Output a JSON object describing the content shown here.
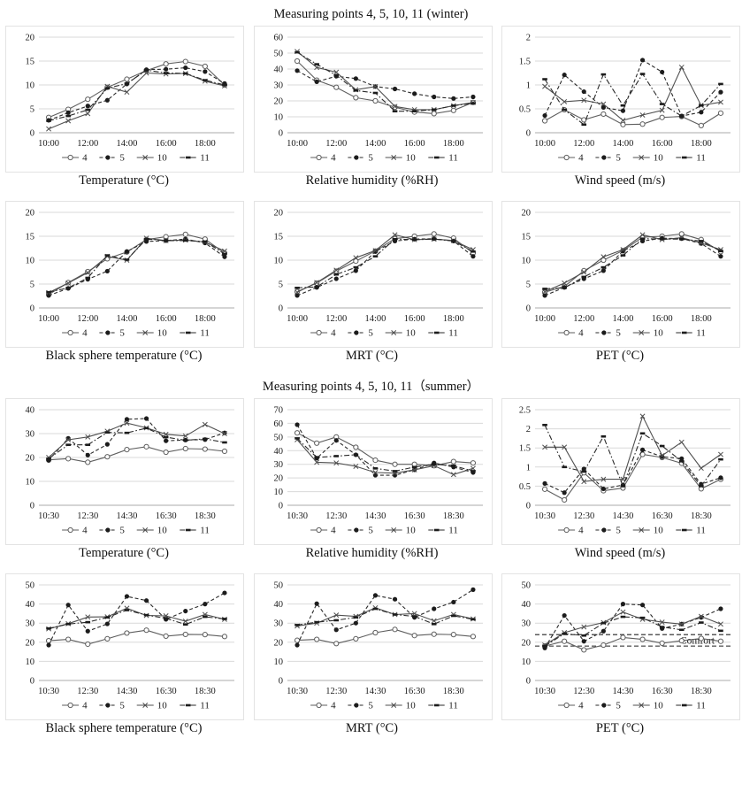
{
  "page": {
    "winter_title": "Measuring points 4, 5, 10, 11 (winter)",
    "summer_title": "Measuring points 4, 5, 10, 11（summer）"
  },
  "legend_labels": [
    "4",
    "5",
    "10",
    "11"
  ],
  "series_styles": {
    "4": {
      "line": "solid",
      "marker": "circle-open",
      "color": "#5e5e5e"
    },
    "5": {
      "line": "dashed",
      "marker": "circle-filled",
      "color": "#2a2a2a"
    },
    "10": {
      "line": "solid",
      "marker": "x",
      "color": "#4f4f4f"
    },
    "11": {
      "line": "dashdot",
      "marker": "dash-filled",
      "color": "#2a2a2a"
    }
  },
  "colors": {
    "gridline": "#d9d9d9",
    "axis": "#ababab",
    "text": "#1a1a1a"
  },
  "chart_data": [
    {
      "type": "line",
      "section": "winter",
      "title": "Temperature (°C)",
      "yticks": [
        0,
        5,
        10,
        15,
        20
      ],
      "ylim": [
        0,
        20
      ],
      "x_ticks": [
        "10:00",
        "12:00",
        "14:00",
        "16:00",
        "18:00"
      ],
      "series": [
        {
          "name": "4",
          "values": [
            3.2,
            4.9,
            7.0,
            9.5,
            11.2,
            13.0,
            14.4,
            14.9,
            13.9,
            10.0
          ]
        },
        {
          "name": "5",
          "values": [
            2.6,
            4.2,
            5.6,
            6.8,
            10.2,
            13.2,
            13.3,
            13.6,
            12.8,
            10.3
          ]
        },
        {
          "name": "10",
          "values": [
            0.8,
            2.5,
            4.0,
            9.7,
            8.5,
            12.5,
            12.3,
            12.4,
            10.8,
            9.8
          ]
        },
        {
          "name": "11",
          "values": [
            2.5,
            3.5,
            4.8,
            9.3,
            10.3,
            13.1,
            12.5,
            12.4,
            11.0,
            10.0
          ]
        }
      ]
    },
    {
      "type": "line",
      "section": "winter",
      "title": "Relative humidity (%RH)",
      "yticks": [
        0,
        10,
        20,
        30,
        40,
        50,
        60
      ],
      "ylim": [
        0,
        60
      ],
      "x_ticks": [
        "10:00",
        "12:00",
        "14:00",
        "16:00",
        "18:00"
      ],
      "series": [
        {
          "name": "4",
          "values": [
            45,
            33,
            28.5,
            22,
            20,
            16,
            13,
            12,
            14,
            19
          ]
        },
        {
          "name": "5",
          "values": [
            39,
            32,
            35.5,
            34,
            29,
            27.5,
            24.5,
            22.5,
            21.5,
            22.5
          ]
        },
        {
          "name": "10",
          "values": [
            51,
            41,
            38,
            27,
            29,
            16.5,
            14.5,
            14.5,
            17,
            19
          ]
        },
        {
          "name": "11",
          "values": [
            50.5,
            43,
            36,
            26.5,
            25,
            13.5,
            13.5,
            14.5,
            17,
            18.5
          ]
        }
      ]
    },
    {
      "type": "line",
      "section": "winter",
      "title": "Wind speed (m/s)",
      "yticks": [
        0,
        0.5,
        1,
        1.5,
        2
      ],
      "ylim": [
        0,
        2
      ],
      "x_ticks": [
        "10:00",
        "12:00",
        "14:00",
        "16:00",
        "18:00"
      ],
      "series": [
        {
          "name": "4",
          "values": [
            0.25,
            0.48,
            0.27,
            0.39,
            0.17,
            0.18,
            0.32,
            0.34,
            0.15,
            0.41
          ]
        },
        {
          "name": "5",
          "values": [
            0.36,
            1.21,
            0.86,
            0.53,
            0.46,
            1.52,
            1.27,
            0.35,
            0.43,
            0.85
          ]
        },
        {
          "name": "10",
          "values": [
            0.97,
            0.65,
            0.68,
            0.6,
            0.26,
            0.37,
            0.47,
            1.37,
            0.57,
            0.64
          ]
        },
        {
          "name": "11",
          "values": [
            1.12,
            0.48,
            0.17,
            1.22,
            0.57,
            1.23,
            0.6,
            0.35,
            0.57,
            1.02
          ]
        }
      ]
    },
    {
      "type": "line",
      "section": "winter",
      "title": "Black sphere temperature (°C)",
      "yticks": [
        0,
        5,
        10,
        15,
        20
      ],
      "ylim": [
        0,
        20
      ],
      "x_ticks": [
        "10:00",
        "12:00",
        "14:00",
        "16:00",
        "18:00"
      ],
      "series": [
        {
          "name": "4",
          "values": [
            2.8,
            5.3,
            7.6,
            10.3,
            11.7,
            14.3,
            14.9,
            15.4,
            14.4,
            11.5
          ]
        },
        {
          "name": "5",
          "values": [
            2.6,
            4.1,
            6.0,
            7.7,
            11.8,
            13.9,
            14.1,
            14.4,
            13.6,
            10.7
          ]
        },
        {
          "name": "10",
          "values": [
            3.2,
            5.2,
            7.4,
            10.8,
            10.0,
            14.6,
            14.1,
            14.2,
            13.8,
            11.9
          ]
        },
        {
          "name": "11",
          "values": [
            3.3,
            4.2,
            6.3,
            11.0,
            10.1,
            14.4,
            14.1,
            14.1,
            13.9,
            11.3
          ]
        }
      ]
    },
    {
      "type": "line",
      "section": "winter",
      "title": "MRT (°C)",
      "yticks": [
        0,
        5,
        10,
        15,
        20
      ],
      "ylim": [
        0,
        20
      ],
      "x_ticks": [
        "10:00",
        "12:00",
        "14:00",
        "16:00",
        "18:00"
      ],
      "series": [
        {
          "name": "4",
          "values": [
            3.4,
            5.2,
            7.7,
            9.8,
            11.9,
            14.5,
            15.0,
            15.5,
            14.6,
            11.5
          ]
        },
        {
          "name": "5",
          "values": [
            2.6,
            4.3,
            6.1,
            7.8,
            11.8,
            14.0,
            14.4,
            14.5,
            14.0,
            10.8
          ]
        },
        {
          "name": "10",
          "values": [
            3.3,
            5.3,
            7.9,
            10.5,
            12.0,
            15.3,
            14.3,
            14.4,
            14.1,
            12.2
          ]
        },
        {
          "name": "11",
          "values": [
            4.2,
            4.4,
            7.0,
            8.5,
            10.8,
            14.4,
            14.3,
            14.4,
            14.0,
            11.8
          ]
        }
      ]
    },
    {
      "type": "line",
      "section": "winter",
      "title": "PET (°C)",
      "yticks": [
        0,
        5,
        10,
        15,
        20
      ],
      "ylim": [
        0,
        20
      ],
      "x_ticks": [
        "10:00",
        "12:00",
        "14:00",
        "16:00",
        "18:00"
      ],
      "series": [
        {
          "name": "4",
          "values": [
            3.3,
            4.5,
            7.8,
            10.0,
            12.0,
            14.8,
            15.0,
            15.5,
            14.3,
            11.8
          ]
        },
        {
          "name": "5",
          "values": [
            2.6,
            4.3,
            6.1,
            7.8,
            11.9,
            14.0,
            14.6,
            14.5,
            13.5,
            10.8
          ]
        },
        {
          "name": "10",
          "values": [
            3.4,
            5.2,
            7.5,
            10.7,
            12.2,
            15.3,
            14.3,
            14.7,
            13.6,
            12.2
          ]
        },
        {
          "name": "11",
          "values": [
            4.0,
            4.2,
            6.5,
            8.5,
            11.0,
            14.5,
            14.4,
            14.4,
            14.0,
            11.9
          ]
        }
      ]
    },
    {
      "type": "line",
      "section": "summer",
      "title": "Temperature (°C)",
      "yticks": [
        0,
        10,
        20,
        30,
        40
      ],
      "ylim": [
        0,
        40
      ],
      "x_ticks": [
        "10:30",
        "12:30",
        "14:30",
        "16:30",
        "18:30"
      ],
      "series": [
        {
          "name": "4",
          "values": [
            19,
            19.5,
            18,
            20.3,
            23.3,
            24.5,
            22.2,
            23.7,
            23.5,
            22.6
          ]
        },
        {
          "name": "5",
          "values": [
            18.8,
            28,
            21,
            25.5,
            36,
            36.3,
            27,
            27.3,
            27.5,
            30.3
          ]
        },
        {
          "name": "10",
          "values": [
            20,
            27.4,
            28.6,
            31,
            34.4,
            32.4,
            29.7,
            29,
            33.8,
            30
          ]
        },
        {
          "name": "11",
          "values": [
            19.5,
            25.3,
            25.3,
            30.5,
            30.3,
            32.3,
            28.5,
            27.2,
            27.8,
            26.3
          ]
        }
      ]
    },
    {
      "type": "line",
      "section": "summer",
      "title": "Relative humidity (%RH)",
      "yticks": [
        0,
        10,
        20,
        30,
        40,
        50,
        60,
        70
      ],
      "ylim": [
        0,
        70
      ],
      "x_ticks": [
        "10:30",
        "12:30",
        "14:30",
        "16:30",
        "18:30"
      ],
      "series": [
        {
          "name": "4",
          "values": [
            53,
            45.5,
            50,
            42.5,
            33,
            30,
            30,
            29,
            32,
            31
          ]
        },
        {
          "name": "5",
          "values": [
            59,
            34.5,
            47.5,
            37,
            22,
            22,
            26,
            31,
            28,
            24
          ]
        },
        {
          "name": "10",
          "values": [
            48,
            31.5,
            31,
            28.5,
            24,
            23.5,
            26,
            29,
            22.5,
            27
          ]
        },
        {
          "name": "11",
          "values": [
            49,
            35,
            36,
            37,
            27,
            25,
            28,
            30,
            29,
            25
          ]
        }
      ]
    },
    {
      "type": "line",
      "section": "summer",
      "title": "Wind speed (m/s)",
      "yticks": [
        0,
        0.5,
        1,
        1.5,
        2,
        2.5
      ],
      "ylim": [
        0,
        2.5
      ],
      "x_ticks": [
        "10:30",
        "12:30",
        "14:30",
        "16:30",
        "18:30"
      ],
      "series": [
        {
          "name": "4",
          "values": [
            0.42,
            0.14,
            0.85,
            0.38,
            0.45,
            1.33,
            1.25,
            1.1,
            0.43,
            0.68
          ]
        },
        {
          "name": "5",
          "values": [
            0.57,
            0.33,
            0.95,
            0.43,
            0.53,
            1.45,
            1.27,
            1.22,
            0.55,
            0.72
          ]
        },
        {
          "name": "10",
          "values": [
            1.52,
            1.52,
            0.62,
            0.68,
            0.68,
            2.33,
            1.3,
            1.65,
            0.97,
            1.33
          ]
        },
        {
          "name": "11",
          "values": [
            2.1,
            1.0,
            0.88,
            1.8,
            0.5,
            1.88,
            1.55,
            1.15,
            0.5,
            1.2
          ]
        }
      ]
    },
    {
      "type": "line",
      "section": "summer",
      "title": "Black sphere temperature (°C)",
      "yticks": [
        0,
        10,
        20,
        30,
        40,
        50
      ],
      "ylim": [
        0,
        50
      ],
      "x_ticks": [
        "10:30",
        "12:30",
        "14:30",
        "16:30",
        "18:30"
      ],
      "series": [
        {
          "name": "4",
          "values": [
            20.8,
            21.5,
            19,
            21.8,
            24.8,
            26.3,
            23.2,
            24.1,
            24,
            23
          ]
        },
        {
          "name": "5",
          "values": [
            18.5,
            39.5,
            25.8,
            29.6,
            44,
            41.8,
            32,
            36.3,
            40,
            45.8
          ]
        },
        {
          "name": "10",
          "values": [
            27,
            29.7,
            33.2,
            33.3,
            37.8,
            34,
            33.8,
            31,
            34.5,
            32
          ]
        },
        {
          "name": "11",
          "values": [
            27.2,
            29.5,
            30.5,
            33,
            36.8,
            34.2,
            32.5,
            29.3,
            33.3,
            32.2
          ]
        }
      ]
    },
    {
      "type": "line",
      "section": "summer",
      "title": "MRT (°C)",
      "yticks": [
        0,
        10,
        20,
        30,
        40,
        50
      ],
      "ylim": [
        0,
        50
      ],
      "x_ticks": [
        "10:30",
        "12:30",
        "14:30",
        "16:30",
        "18:30"
      ],
      "series": [
        {
          "name": "4",
          "values": [
            21,
            21.5,
            19.3,
            21.8,
            25,
            26.7,
            23.5,
            24.2,
            24,
            23
          ]
        },
        {
          "name": "5",
          "values": [
            18.5,
            40.2,
            26.5,
            30,
            44.5,
            42.5,
            33,
            37.5,
            41,
            47.5
          ]
        },
        {
          "name": "10",
          "values": [
            28.5,
            30,
            34.2,
            33.5,
            38,
            34.5,
            35,
            31.2,
            34.5,
            32.2
          ]
        },
        {
          "name": "11",
          "values": [
            29,
            30.5,
            31.5,
            33,
            37.5,
            34.5,
            33.5,
            29.5,
            33.8,
            32
          ]
        }
      ]
    },
    {
      "type": "line",
      "section": "summer",
      "title": "PET (°C)",
      "yticks": [
        0,
        10,
        20,
        30,
        40,
        50
      ],
      "ylim": [
        0,
        50
      ],
      "x_ticks": [
        "10:30",
        "12:30",
        "14:30",
        "16:30",
        "18:30"
      ],
      "comfort": {
        "lines": [
          18,
          24
        ],
        "label": "Comfort"
      },
      "series": [
        {
          "name": "4",
          "values": [
            18,
            20.5,
            16,
            18.5,
            22.5,
            21.5,
            19.5,
            20.8,
            22,
            20.5
          ]
        },
        {
          "name": "5",
          "values": [
            17,
            34,
            20.5,
            25.8,
            40,
            39.5,
            27.2,
            29.5,
            33,
            37.5
          ]
        },
        {
          "name": "10",
          "values": [
            18.5,
            25,
            28,
            30.3,
            35.8,
            32,
            30.5,
            29.5,
            33.5,
            29.5
          ]
        },
        {
          "name": "11",
          "values": [
            18,
            24.5,
            23.5,
            30,
            33.3,
            32.8,
            28,
            26.5,
            30.3,
            26
          ]
        }
      ]
    }
  ]
}
